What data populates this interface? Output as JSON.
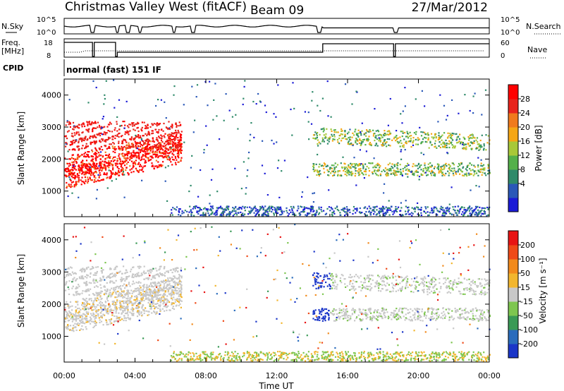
{
  "header": {
    "station": "Christmas Valley West (fitACF)",
    "beam": "Beam 09",
    "date": "27/Mar/2012"
  },
  "panels": {
    "nsky": {
      "left_label": "N.Sky",
      "right_label": "N.Search",
      "left_ticks": [
        "10^5",
        "10^0"
      ],
      "right_ticks": [
        "10^5",
        "10^0"
      ]
    },
    "freq": {
      "left_label_line1": "Freq.",
      "left_label_line2": "[MHz]",
      "right_label": "Nave",
      "left_ticks": [
        "18",
        "8"
      ],
      "right_ticks": [
        "60",
        "0"
      ]
    },
    "cpid": {
      "label": "CPID",
      "mode_text": "normal (fast) 151 IF"
    }
  },
  "chart_data": [
    {
      "type": "heatmap",
      "name": "power",
      "ylabel": "Slant Range [km]",
      "yticks": [
        "1000",
        "2000",
        "3000",
        "4000"
      ],
      "ylim": [
        200,
        4500
      ],
      "colorbar": {
        "label": "Power [dB]",
        "ticks": [
          "28",
          "24",
          "20",
          "16",
          "12",
          "8",
          "4"
        ],
        "colors": [
          "#1b1bd6",
          "#2a58b8",
          "#2f8a6a",
          "#54b04a",
          "#a8c838",
          "#f5a614",
          "#f07a1c",
          "#e8241c",
          "#ff0000"
        ]
      }
    },
    {
      "type": "heatmap",
      "name": "velocity",
      "ylabel": "Slant Range [km]",
      "yticks": [
        "1000",
        "2000",
        "3000",
        "4000"
      ],
      "ylim": [
        200,
        4500
      ],
      "xlabel": "Time UT",
      "xticks": [
        "00:00",
        "04:00",
        "08:00",
        "12:00",
        "16:00",
        "20:00",
        "00:00"
      ],
      "colorbar": {
        "label": "Velocity [m s⁻¹]",
        "ticks": [
          "200",
          "100",
          "50",
          "15",
          "-15",
          "-50",
          "-100",
          "-200"
        ],
        "colors": [
          "#1b36c8",
          "#2a6cbc",
          "#3a9a56",
          "#7ec650",
          "#c8c8c8",
          "#f2b62e",
          "#f28a1c",
          "#ef4a18",
          "#e81414"
        ]
      }
    }
  ]
}
